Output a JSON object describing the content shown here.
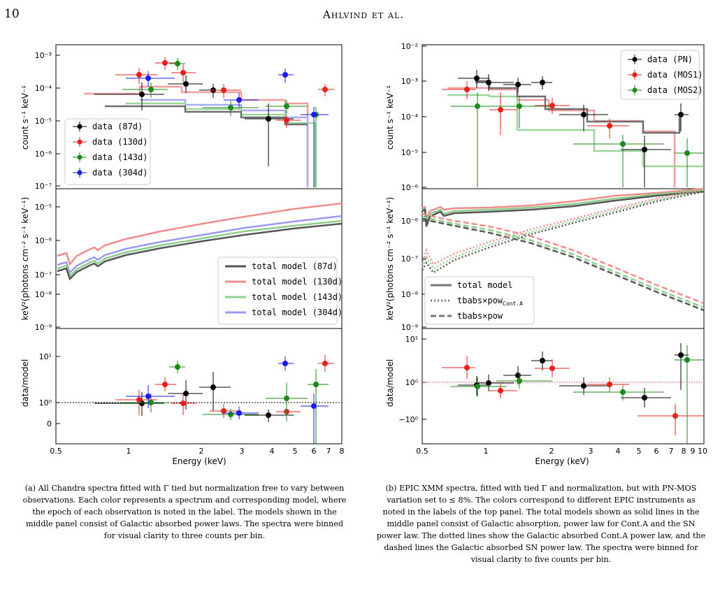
{
  "header": {
    "page_number": "10",
    "authors": "Ahlvind et al."
  },
  "colors": {
    "pn": "#000000",
    "mos1": "#e8201c",
    "mos2": "#1a8a1a",
    "d304": "#1a1aee",
    "model87": "#555555",
    "model130": "#f08c8c",
    "model143": "#8ccf8c",
    "model304": "#9a9af5"
  },
  "panel_a": {
    "top_ylabel": "count s⁻¹ keV⁻¹",
    "mid_ylabel": "keV²(photons cm⁻² s⁻¹ keV⁻¹)",
    "bot_ylabel": "data/model",
    "xlabel": "Energy (keV)",
    "top_yticks": [
      "10⁻³",
      "10⁻⁴",
      "10⁻⁵",
      "10⁻⁶",
      "10⁻⁷"
    ],
    "mid_yticks": [
      "10⁻⁵",
      "10⁻⁶",
      "10⁻⁷",
      "10⁻⁸",
      "10⁻⁹"
    ],
    "bot_yticks": [
      "10¹",
      "10⁰",
      "0"
    ],
    "xticks": [
      "0.5",
      "1",
      "2",
      "3",
      "4",
      "5",
      "6",
      "7",
      "8"
    ],
    "data_legend": [
      "data (87d)",
      "data (130d)",
      "data (143d)",
      "data (304d)"
    ],
    "model_legend": [
      "total model (87d)",
      "total model (130d)",
      "total model (143d)",
      "total model (304d)"
    ]
  },
  "panel_b": {
    "top_ylabel": "count s⁻¹ keV⁻¹",
    "mid_ylabel": "keV²(photons cm⁻² s⁻¹ keV⁻¹)",
    "bot_ylabel": "data/model",
    "xlabel": "Energy (keV)",
    "top_yticks": [
      "10⁻²",
      "10⁻³",
      "10⁻⁴",
      "10⁻⁵",
      "10⁻⁶"
    ],
    "mid_yticks": [
      "10⁻⁶",
      "10⁻⁷",
      "10⁻⁸",
      "10⁻⁹"
    ],
    "bot_yticks": [
      "10¹",
      "10⁰",
      "−10⁰"
    ],
    "xticks": [
      "0.5",
      "1",
      "2",
      "3",
      "4",
      "5",
      "6",
      "7",
      "8",
      "9",
      "10"
    ],
    "data_legend": [
      "data (PN)",
      "data (MOS1)",
      "data (MOS2)"
    ],
    "model_legend": [
      "total model",
      "tbabs×pow",
      "tbabs×pow"
    ],
    "model_legend_sub": "Cont.A"
  },
  "captions": {
    "a": "(a) All Chandra spectra fitted with Γ tied but normalization free to vary between observations. Each color represents a spectrum and corresponding model, where the epoch of each observation is noted in the label. The models shown in the middle panel consist of Galactic absorbed power laws. The spectra were binned for visual clarity to three counts per bin.",
    "b": "(b) EPIC XMM spectra, fitted with tied Γ and normalization, but with PN-MOS variation set to ≤ 8%. The colors correspond to different EPIC instruments as noted in the labels of the top panel. The total models shown as solid lines in the middle panel consist of Galactic absorption, power law for Cont.A and the SN power law. The dotted lines show the Galactic absorbed Cont.A power law, and the dashed lines the Galactic absorbed SN power law. The spectra were binned for visual clarity to five counts per bin."
  }
}
